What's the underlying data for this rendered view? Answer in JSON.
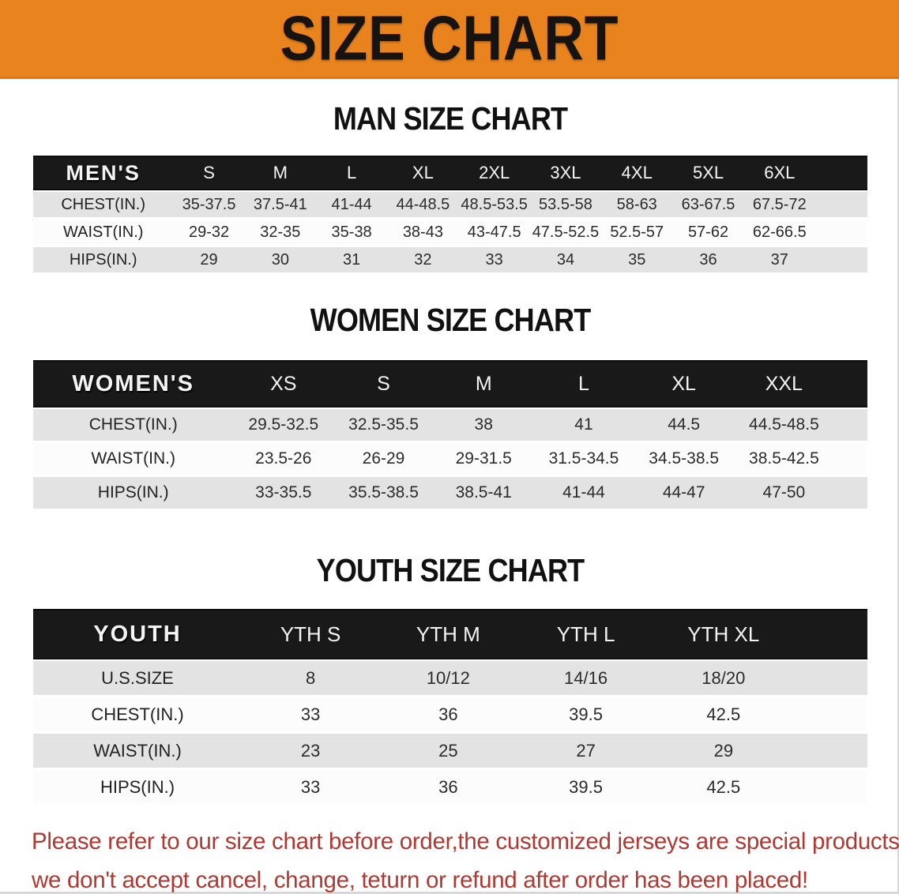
{
  "banner": {
    "title": "SIZE CHART",
    "bg_color": "#E8831E",
    "text_color": "#161310"
  },
  "sections": [
    {
      "id": "men",
      "heading": "MAN SIZE CHART",
      "table": {
        "header": [
          "MEN'S",
          "S",
          "M",
          "L",
          "XL",
          "2XL",
          "3XL",
          "4XL",
          "5XL",
          "6XL"
        ],
        "rows": [
          [
            "CHEST(IN.)",
            "35-37.5",
            "37.5-41",
            "41-44",
            "44-48.5",
            "48.5-53.5",
            "53.5-58",
            "58-63",
            "63-67.5",
            "67.5-72"
          ],
          [
            "WAIST(IN.)",
            "29-32",
            "32-35",
            "35-38",
            "38-43",
            "43-47.5",
            "47.5-52.5",
            "52.5-57",
            "57-62",
            "62-66.5"
          ],
          [
            "HIPS(IN.)",
            "29",
            "30",
            "31",
            "32",
            "33",
            "34",
            "35",
            "36",
            "37"
          ]
        ]
      }
    },
    {
      "id": "women",
      "heading": "WOMEN SIZE CHART",
      "table": {
        "header": [
          "WOMEN'S",
          "XS",
          "S",
          "M",
          "L",
          "XL",
          "XXL"
        ],
        "rows": [
          [
            "CHEST(IN.)",
            "29.5-32.5",
            "32.5-35.5",
            "38",
            "41",
            "44.5",
            "44.5-48.5"
          ],
          [
            "WAIST(IN.)",
            "23.5-26",
            "26-29",
            "29-31.5",
            "31.5-34.5",
            "34.5-38.5",
            "38.5-42.5"
          ],
          [
            "HIPS(IN.)",
            "33-35.5",
            "35.5-38.5",
            "38.5-41",
            "41-44",
            "44-47",
            "47-50"
          ]
        ]
      }
    },
    {
      "id": "youth",
      "heading": "YOUTH SIZE CHART",
      "table": {
        "header": [
          "YOUTH",
          "YTH S",
          "YTH M",
          "YTH L",
          "YTH XL"
        ],
        "rows": [
          [
            "U.S.SIZE",
            "8",
            "10/12",
            "14/16",
            "18/20"
          ],
          [
            "CHEST(IN.)",
            "33",
            "36",
            "39.5",
            "42.5"
          ],
          [
            "WAIST(IN.)",
            "23",
            "25",
            "27",
            "29"
          ],
          [
            "HIPS(IN.)",
            "33",
            "36",
            "39.5",
            "42.5"
          ]
        ]
      }
    }
  ],
  "disclaimer": {
    "line1": "Please refer to our size chart before order,the customized jerseys are special products,",
    "line2": "we don't accept cancel, change, teturn or refund after order has been placed!",
    "color": "#AE3933"
  },
  "colors": {
    "banner_orange": "#E8831E",
    "header_black": "#191919",
    "stripe_gray": "#E3E3E3",
    "stripe_white": "#FCFCFC",
    "body_text": "#2B2B2B",
    "disclaimer_red": "#AE3933"
  }
}
